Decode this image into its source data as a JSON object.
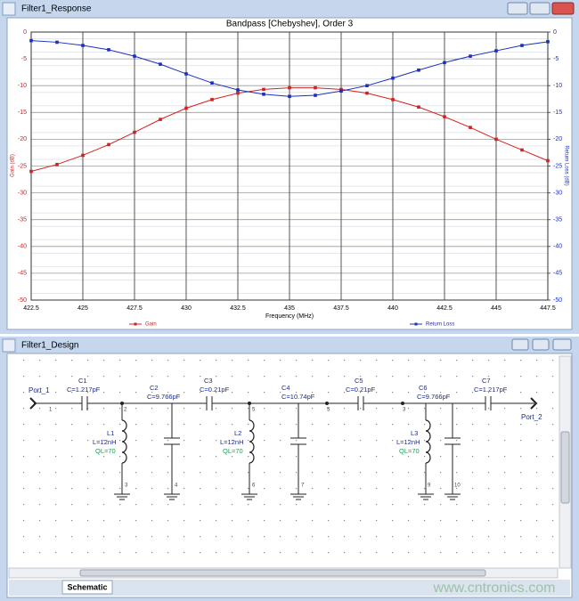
{
  "windows": {
    "response_title": "Filter1_Response",
    "design_title": "Filter1_Design",
    "tab": "Schematic",
    "watermark": "www.cntronics.com"
  },
  "chart_data": {
    "type": "line",
    "title": "Bandpass [Chebyshev], Order 3",
    "xlabel": "Frequency (MHz)",
    "ylabel": "Gain (dB)",
    "y2label": "Return Loss (dB)",
    "x": [
      422.5,
      423.75,
      425,
      426.25,
      427.5,
      428.75,
      430,
      431.25,
      432.5,
      433.75,
      435,
      436.25,
      437.5,
      438.75,
      440,
      441.25,
      442.5,
      443.75,
      445,
      446.25,
      447.5
    ],
    "series": [
      {
        "name": "Gain",
        "color": "#d42020",
        "values": [
          -26,
          -24.7,
          -23,
          -21,
          -18.7,
          -16.3,
          -14.2,
          -12.6,
          -11.4,
          -10.7,
          -10.4,
          -10.4,
          -10.7,
          -11.4,
          -12.6,
          -14,
          -15.8,
          -17.8,
          -20,
          -22,
          -24
        ]
      },
      {
        "name": "Return Loss",
        "color": "#1a2fbf",
        "axis": "y2",
        "values": [
          -1.6,
          -1.9,
          -2.5,
          -3.3,
          -4.5,
          -6,
          -7.8,
          -9.5,
          -10.8,
          -11.6,
          -12,
          -11.8,
          -11,
          -10,
          -8.6,
          -7.1,
          -5.7,
          -4.5,
          -3.5,
          -2.5,
          -1.8
        ]
      }
    ],
    "xlim": [
      422.5,
      447.5
    ],
    "xticks": [
      422.5,
      425,
      427.5,
      430,
      432.5,
      435,
      437.5,
      440,
      442.5,
      445,
      447.5
    ],
    "ylim": [
      -50,
      0
    ],
    "yticks": [
      0,
      -5,
      -10,
      -15,
      -20,
      -25,
      -30,
      -35,
      -40,
      -45,
      -50
    ],
    "y2lim": [
      -50,
      0
    ],
    "y2ticks": [
      0,
      -5,
      -10,
      -15,
      -20,
      -25,
      -30,
      -35,
      -40,
      -45,
      -50
    ],
    "grid": true,
    "legend": "bottom"
  },
  "schematic": {
    "ports": [
      "Port_1",
      "Port_2"
    ],
    "components": [
      {
        "name": "C1",
        "value": "C=1.217pF"
      },
      {
        "name": "C2",
        "value": "C=9.766pF"
      },
      {
        "name": "C3",
        "value": "C=0.21pF"
      },
      {
        "name": "C4",
        "value": "C=10.74pF"
      },
      {
        "name": "C5",
        "value": "C=0.21pF"
      },
      {
        "name": "C6",
        "value": "C=9.766pF"
      },
      {
        "name": "C7",
        "value": "C=1.217pF"
      },
      {
        "name": "L1",
        "value": "L=12nH",
        "q": "QL=70"
      },
      {
        "name": "L2",
        "value": "L=12nH",
        "q": "QL=70"
      },
      {
        "name": "L3",
        "value": "L=12nH",
        "q": "QL=70"
      }
    ],
    "nodes": [
      "1",
      "2",
      "3",
      "4",
      "5",
      "6",
      "7",
      "5",
      "3",
      "9",
      "10"
    ]
  }
}
